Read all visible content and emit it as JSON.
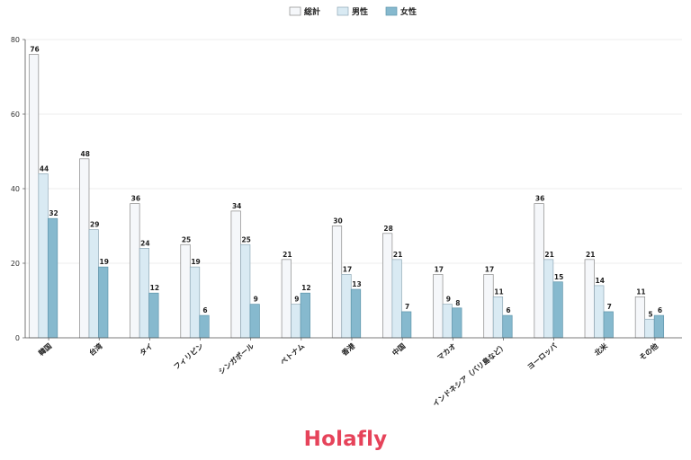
{
  "chart_data": {
    "type": "bar",
    "title": "",
    "xlabel": "",
    "ylabel": "",
    "ylim": [
      0,
      80
    ],
    "yticks": [
      0,
      20,
      40,
      60,
      80
    ],
    "grid": "horizontal",
    "legend_position": "top-center",
    "categories": [
      "韓国",
      "台湾",
      "タイ",
      "フィリピン",
      "シンガポール",
      "ベトナム",
      "香港",
      "中国",
      "マカオ",
      "インドネシア（バリ島など）",
      "ヨーロッパ",
      "北米",
      "その他"
    ],
    "series": [
      {
        "name": "総計",
        "color": "#f5f7fa",
        "stroke": "#8a8a8a",
        "values": [
          76,
          48,
          36,
          25,
          34,
          21,
          30,
          28,
          17,
          17,
          36,
          21,
          11
        ]
      },
      {
        "name": "男性",
        "color": "#d9eaf3",
        "stroke": "#8fa8b6",
        "values": [
          44,
          29,
          24,
          19,
          25,
          9,
          17,
          21,
          9,
          11,
          21,
          14,
          5
        ]
      },
      {
        "name": "女性",
        "color": "#86b9ce",
        "stroke": "#5f95ab",
        "values": [
          32,
          19,
          12,
          6,
          9,
          12,
          13,
          7,
          8,
          6,
          15,
          7,
          6
        ]
      }
    ]
  },
  "brand": {
    "logo_text": "Holafly",
    "color": "#e6435a"
  }
}
